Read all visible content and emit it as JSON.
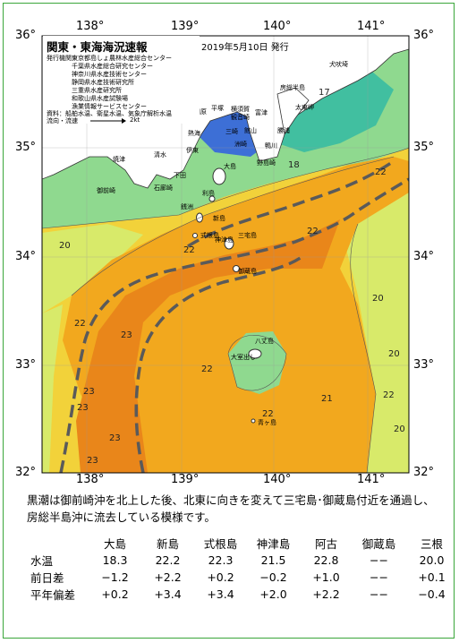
{
  "map": {
    "title": "関東・東海海況速報",
    "date": "2019年5月10日 発行",
    "longitude_labels": [
      "138°",
      "139°",
      "140°",
      "141°"
    ],
    "latitude_labels": [
      "36°",
      "35°",
      "34°",
      "33°",
      "32°"
    ],
    "issuers_heading": "発行機関：",
    "issuers": [
      "東京都島しょ農林水産総合センター",
      "千葉県水産総合研究センター",
      "神奈川県水産技術センター",
      "静岡県水産技術研究所",
      "三重県水産研究所",
      "和歌山県水産試験場",
      "漁業情報サービスセンター"
    ],
    "materials": "資料：船舶水温、衛星水温、気象庁解析水温",
    "current_legend_label": "流向・流速",
    "current_legend_value": "2kt",
    "temperature_labels": [
      "17",
      "18",
      "20",
      "22",
      "22",
      "22",
      "22",
      "22",
      "22",
      "23",
      "23",
      "23",
      "23",
      "23",
      "20",
      "20",
      "21",
      "22",
      "20"
    ],
    "place_names": [
      "犬吠埼",
      "太東岬",
      "勝浦",
      "鴨川",
      "館山",
      "野島崎",
      "洲崎",
      "富津",
      "横須賀",
      "観音崎",
      "三崎",
      "平塚",
      "小田原",
      "熱海",
      "伊東",
      "石廊崎",
      "下田",
      "焼津",
      "清水",
      "御前崎",
      "大島",
      "利島",
      "新島",
      "式根島",
      "神津島",
      "三宅島",
      "御蔵島",
      "八丈島",
      "青ヶ島",
      "銭洲",
      "大室出し",
      "房総半島"
    ]
  },
  "description": "黒潮は御前崎沖を北上した後、北東に向きを変えて三宅島･御蔵島付近を通過し、房総半島沖に流去している模様です。",
  "table": {
    "columns": [
      "大島",
      "新島",
      "式根島",
      "神津島",
      "阿古",
      "御蔵島",
      "三根"
    ],
    "rows": [
      {
        "label": "水温",
        "values": [
          "18.3",
          "22.2",
          "22.3",
          "21.5",
          "22.8",
          "−−",
          "20.0"
        ]
      },
      {
        "label": "前日差",
        "values": [
          "−1.2",
          "+2.2",
          "+0.2",
          "−0.2",
          "+1.0",
          "−−",
          "+0.1"
        ]
      },
      {
        "label": "平年偏差",
        "values": [
          "+0.2",
          "+3.4",
          "+3.4",
          "+2.0",
          "+2.2",
          "−−",
          "−0.4"
        ]
      }
    ]
  },
  "colors": {
    "frame": "#3aa63a",
    "land": "#ffffff",
    "coast_cold": "#3d6fd6",
    "water_17": "#41bfa0",
    "water_19": "#8fd98f",
    "water_20": "#d8ea6a",
    "water_21": "#f2d23a",
    "water_22": "#f2a81e",
    "water_23": "#e9861a",
    "kuroshio_axis": "#5a5a5a"
  }
}
